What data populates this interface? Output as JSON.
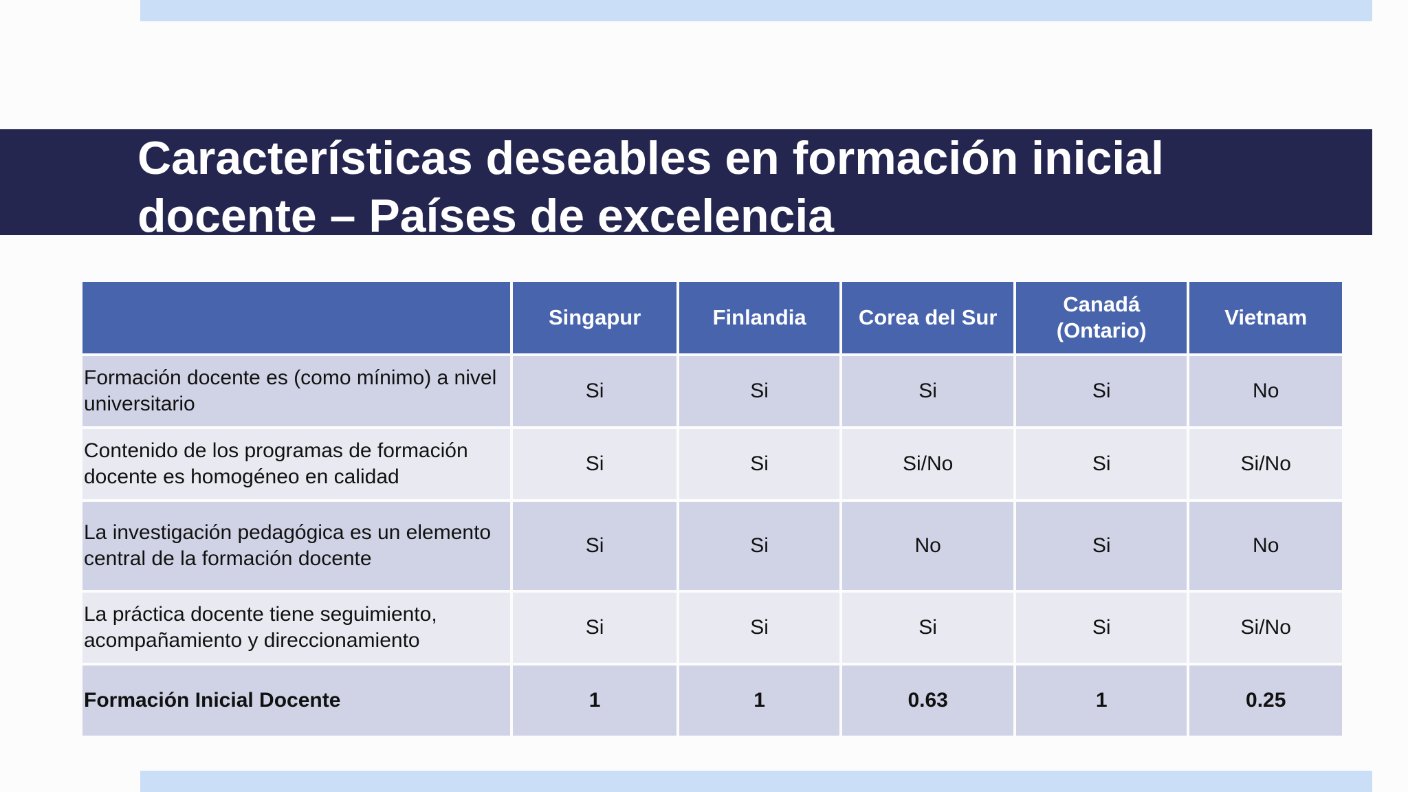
{
  "slide": {
    "title": "Características deseables en formación inicial\ndocente – Países de excelencia"
  },
  "table": {
    "headers": [
      "",
      "Singapur",
      "Finlandia",
      "Corea del Sur",
      "Canadá\n(Ontario)",
      "Vietnam"
    ],
    "rows": [
      {
        "label": "Formación docente es (como mínimo) a nivel universitario",
        "values": [
          "Si",
          "Si",
          "Si",
          "Si",
          "No"
        ]
      },
      {
        "label": "Contenido de los programas de formación docente es homogéneo en calidad",
        "values": [
          "Si",
          "Si",
          "Si/No",
          "Si",
          "Si/No"
        ]
      },
      {
        "label": "La investigación pedagógica es un elemento central de la formación docente",
        "values": [
          "Si",
          "Si",
          "No",
          "Si",
          "No"
        ]
      },
      {
        "label": "La práctica docente tiene seguimiento, acompañamiento y direccionamiento",
        "values": [
          "Si",
          "Si",
          "Si",
          "Si",
          "Si/No"
        ]
      }
    ],
    "total": {
      "label": "Formación Inicial Docente",
      "values": [
        "1",
        "1",
        "0.63",
        "1",
        "0.25"
      ]
    }
  }
}
